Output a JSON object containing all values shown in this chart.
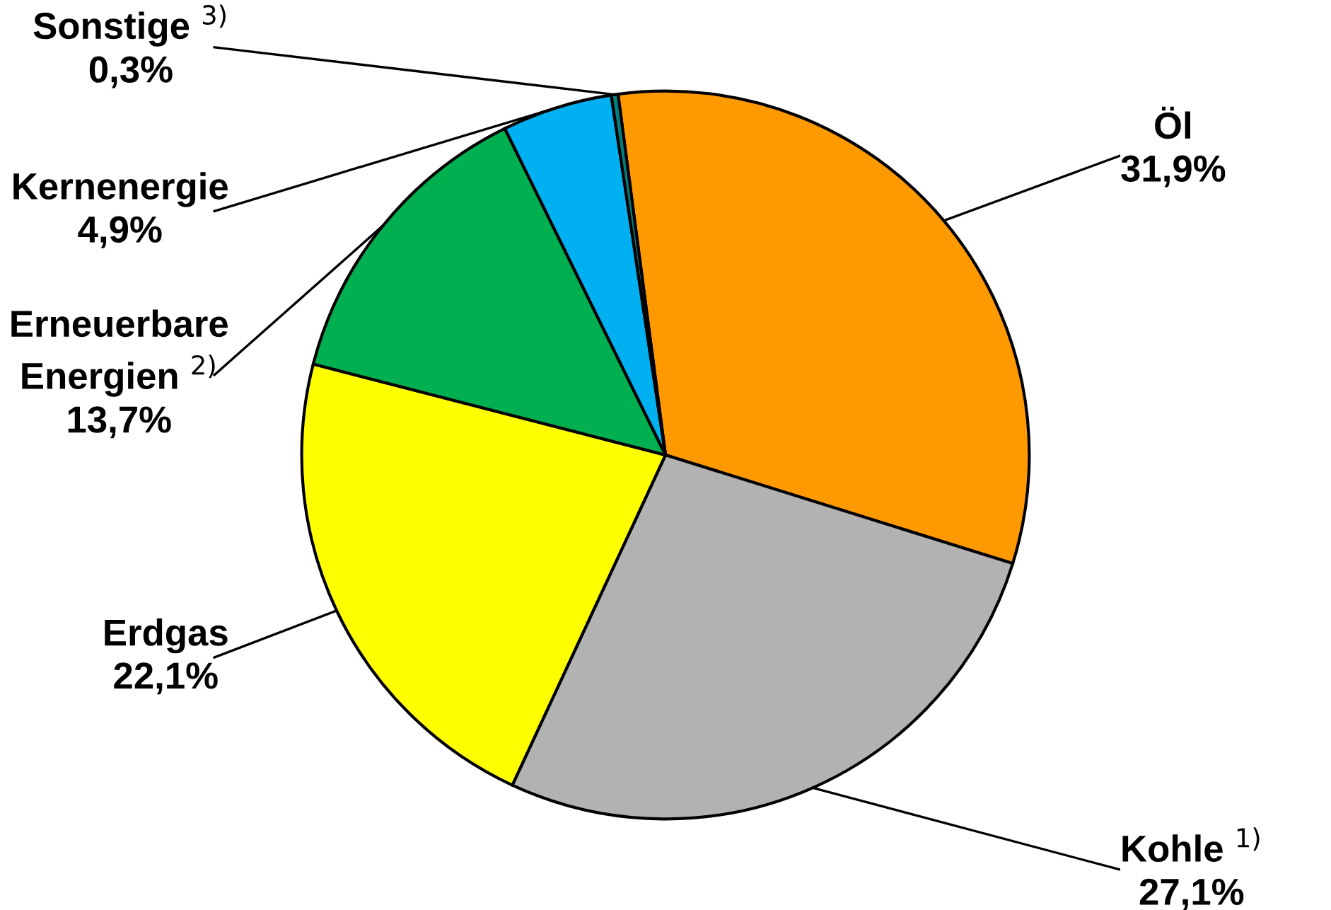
{
  "chart_data": {
    "type": "pie",
    "categories": [
      "Öl",
      "Kohle $^{1)}$",
      "Erdgas",
      "Erneuerbare\nEnergien $^{2)}$",
      "Kernenergie",
      "Sonstige $^{3)}$"
    ],
    "values": [
      31.9,
      27.1,
      22.1,
      13.7,
      4.9,
      0.3
    ],
    "colors": [
      "#ff9900",
      "#b2b2b2",
      "#ffff00",
      "#00b050",
      "#00b0f0",
      "#008080"
    ],
    "value_labels": [
      "31,9%",
      "27,1%",
      "22,1%",
      "13,7%",
      "4,9%",
      "0,3%"
    ],
    "legend": false
  }
}
